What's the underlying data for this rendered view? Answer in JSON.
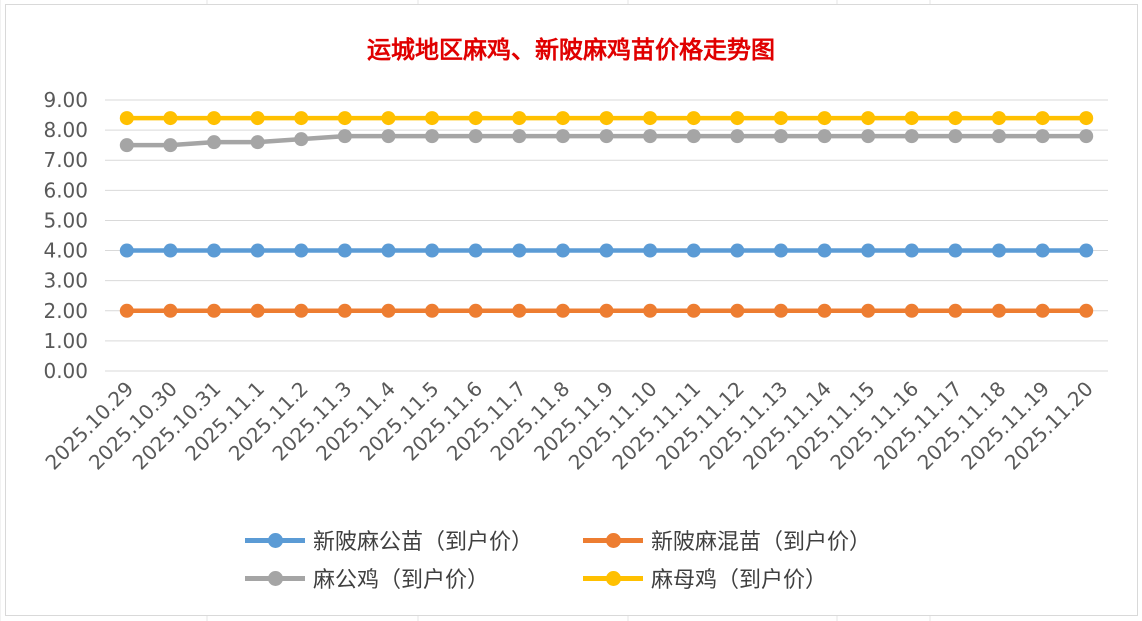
{
  "chart_data": {
    "type": "line",
    "title": "运城地区麻鸡、新陂麻鸡苗价格走势图",
    "xlabel": "",
    "ylabel": "",
    "ylim": [
      0,
      9
    ],
    "yticks": [
      "0.00",
      "1.00",
      "2.00",
      "3.00",
      "4.00",
      "5.00",
      "6.00",
      "7.00",
      "8.00",
      "9.00"
    ],
    "grid": true,
    "legend_position": "bottom",
    "categories": [
      "2025.10.29",
      "2025.10.30",
      "2025.10.31",
      "2025.11.1",
      "2025.11.2",
      "2025.11.3",
      "2025.11.4",
      "2025.11.5",
      "2025.11.6",
      "2025.11.7",
      "2025.11.8",
      "2025.11.9",
      "2025.11.10",
      "2025.11.11",
      "2025.11.12",
      "2025.11.13",
      "2025.11.14",
      "2025.11.15",
      "2025.11.16",
      "2025.11.17",
      "2025.11.18",
      "2025.11.19",
      "2025.11.20"
    ],
    "series": [
      {
        "name": "新陂麻公苗（到户价）",
        "color": "#5B9BD5",
        "values": [
          4.0,
          4.0,
          4.0,
          4.0,
          4.0,
          4.0,
          4.0,
          4.0,
          4.0,
          4.0,
          4.0,
          4.0,
          4.0,
          4.0,
          4.0,
          4.0,
          4.0,
          4.0,
          4.0,
          4.0,
          4.0,
          4.0,
          4.0
        ]
      },
      {
        "name": "新陂麻混苗（到户价）",
        "color": "#ED7D31",
        "values": [
          2.0,
          2.0,
          2.0,
          2.0,
          2.0,
          2.0,
          2.0,
          2.0,
          2.0,
          2.0,
          2.0,
          2.0,
          2.0,
          2.0,
          2.0,
          2.0,
          2.0,
          2.0,
          2.0,
          2.0,
          2.0,
          2.0,
          2.0
        ]
      },
      {
        "name": "麻公鸡（到户价）",
        "color": "#A5A5A5",
        "values": [
          7.5,
          7.5,
          7.6,
          7.6,
          7.7,
          7.8,
          7.8,
          7.8,
          7.8,
          7.8,
          7.8,
          7.8,
          7.8,
          7.8,
          7.8,
          7.8,
          7.8,
          7.8,
          7.8,
          7.8,
          7.8,
          7.8,
          7.8
        ]
      },
      {
        "name": "麻母鸡（到户价）",
        "color": "#FFC000",
        "values": [
          8.4,
          8.4,
          8.4,
          8.4,
          8.4,
          8.4,
          8.4,
          8.4,
          8.4,
          8.4,
          8.4,
          8.4,
          8.4,
          8.4,
          8.4,
          8.4,
          8.4,
          8.4,
          8.4,
          8.4,
          8.4,
          8.4,
          8.4
        ]
      }
    ],
    "legend_order": [
      0,
      1,
      2,
      3
    ]
  }
}
